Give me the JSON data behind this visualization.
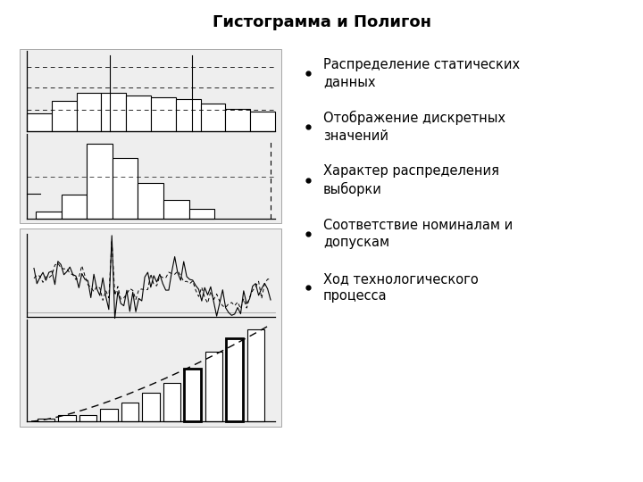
{
  "title": "Гистограмма и Полигон",
  "bullet_points": [
    "Распределение статических\nданных",
    "Отображение дискретных\nзначений",
    "Характер распределения\nвыборки",
    "Соответствие номиналам и\nдопускам",
    "Ход технологического\nпроцесса"
  ],
  "bg_color": "#ffffff",
  "panel_color": "#eeeeee",
  "title_fontsize": 13,
  "bullet_fontsize": 10.5
}
